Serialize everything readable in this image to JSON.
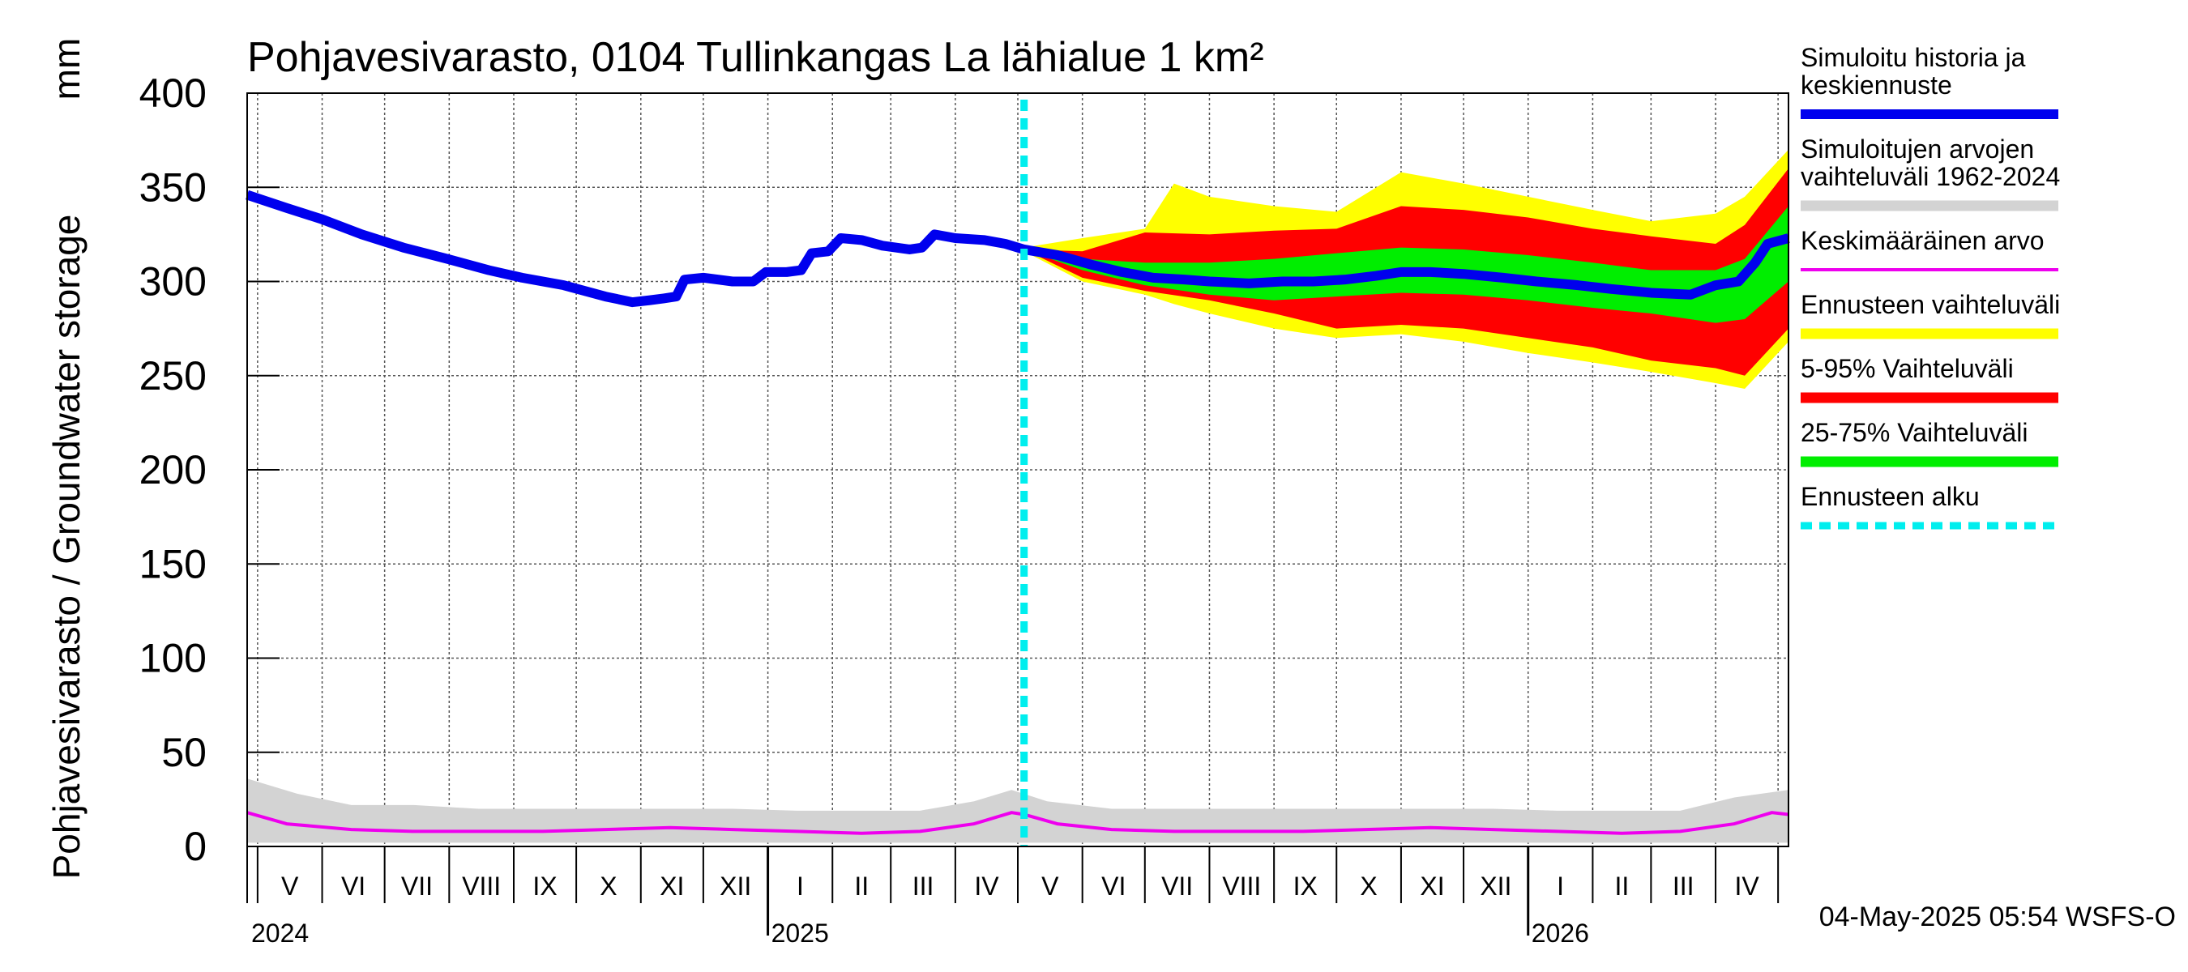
{
  "chart_data": {
    "type": "area",
    "title": "Pohjavesivarasto, 0104 Tullinkangas La lähialue 1 km²",
    "ylabel": "Pohjavesivarasto / Groundwater storage",
    "yunit": "mm",
    "ylim": [
      0,
      400
    ],
    "yticks": [
      0,
      50,
      100,
      150,
      200,
      250,
      300,
      350,
      400
    ],
    "xlim": [
      "2024-04-26",
      "2026-05-06"
    ],
    "months": [
      {
        "label": "V",
        "start": "2024-05-01"
      },
      {
        "label": "VI",
        "start": "2024-06-01"
      },
      {
        "label": "VII",
        "start": "2024-07-01"
      },
      {
        "label": "VIII",
        "start": "2024-08-01"
      },
      {
        "label": "IX",
        "start": "2024-09-01"
      },
      {
        "label": "X",
        "start": "2024-10-01"
      },
      {
        "label": "XI",
        "start": "2024-11-01"
      },
      {
        "label": "XII",
        "start": "2024-12-01"
      },
      {
        "label": "I",
        "start": "2025-01-01"
      },
      {
        "label": "II",
        "start": "2025-02-01"
      },
      {
        "label": "III",
        "start": "2025-03-01"
      },
      {
        "label": "IV",
        "start": "2025-04-01"
      },
      {
        "label": "V",
        "start": "2025-05-01"
      },
      {
        "label": "VI",
        "start": "2025-06-01"
      },
      {
        "label": "VII",
        "start": "2025-07-01"
      },
      {
        "label": "VIII",
        "start": "2025-08-01"
      },
      {
        "label": "IX",
        "start": "2025-09-01"
      },
      {
        "label": "X",
        "start": "2025-10-01"
      },
      {
        "label": "XI",
        "start": "2025-11-01"
      },
      {
        "label": "XII",
        "start": "2025-12-01"
      },
      {
        "label": "I",
        "start": "2026-01-01"
      },
      {
        "label": "II",
        "start": "2026-02-01"
      },
      {
        "label": "III",
        "start": "2026-03-01"
      },
      {
        "label": "IV",
        "start": "2026-04-01"
      },
      {
        "label": "",
        "start": "2026-05-01"
      }
    ],
    "years": [
      {
        "label": "2024",
        "date": "2024-05-01"
      },
      {
        "label": "2025",
        "date": "2025-01-01"
      },
      {
        "label": "2026",
        "date": "2026-01-01"
      }
    ],
    "forecast_start": "2025-05-04",
    "series": [
      {
        "name": "Simuloitu historia ja keskiennuste",
        "color": "#0000ee",
        "points": [
          [
            "2024-04-26",
            346
          ],
          [
            "2024-05-15",
            339
          ],
          [
            "2024-06-01",
            333
          ],
          [
            "2024-06-20",
            325
          ],
          [
            "2024-07-10",
            318
          ],
          [
            "2024-07-31",
            312
          ],
          [
            "2024-08-20",
            306
          ],
          [
            "2024-09-05",
            302
          ],
          [
            "2024-09-25",
            298
          ],
          [
            "2024-10-15",
            292
          ],
          [
            "2024-10-28",
            289
          ],
          [
            "2024-11-05",
            290
          ],
          [
            "2024-11-12",
            291
          ],
          [
            "2024-11-18",
            292
          ],
          [
            "2024-11-22",
            301
          ],
          [
            "2024-12-01",
            302
          ],
          [
            "2024-12-15",
            300
          ],
          [
            "2024-12-25",
            300
          ],
          [
            "2024-12-31",
            305
          ],
          [
            "2025-01-10",
            305
          ],
          [
            "2025-01-17",
            306
          ],
          [
            "2025-01-22",
            315
          ],
          [
            "2025-01-30",
            316
          ],
          [
            "2025-02-05",
            323
          ],
          [
            "2025-02-15",
            322
          ],
          [
            "2025-02-25",
            319
          ],
          [
            "2025-03-10",
            317
          ],
          [
            "2025-03-16",
            318
          ],
          [
            "2025-03-22",
            325
          ],
          [
            "2025-04-01",
            323
          ],
          [
            "2025-04-15",
            322
          ],
          [
            "2025-04-25",
            320
          ],
          [
            "2025-05-04",
            317
          ],
          [
            "2025-05-20",
            314
          ],
          [
            "2025-06-05",
            309
          ],
          [
            "2025-06-20",
            305
          ],
          [
            "2025-07-05",
            302
          ],
          [
            "2025-07-20",
            301
          ],
          [
            "2025-08-01",
            300
          ],
          [
            "2025-08-20",
            299
          ],
          [
            "2025-09-05",
            300
          ],
          [
            "2025-09-20",
            300
          ],
          [
            "2025-10-05",
            301
          ],
          [
            "2025-10-20",
            303
          ],
          [
            "2025-11-01",
            305
          ],
          [
            "2025-11-15",
            305
          ],
          [
            "2025-12-01",
            304
          ],
          [
            "2025-12-20",
            302
          ],
          [
            "2026-01-05",
            300
          ],
          [
            "2026-01-25",
            298
          ],
          [
            "2026-02-10",
            296
          ],
          [
            "2026-03-01",
            294
          ],
          [
            "2026-03-20",
            293
          ],
          [
            "2026-04-01",
            298
          ],
          [
            "2026-04-12",
            300
          ],
          [
            "2026-04-20",
            310
          ],
          [
            "2026-04-26",
            320
          ],
          [
            "2026-05-06",
            323
          ]
        ]
      },
      {
        "name": "Simuloitujen arvojen vaihteluväli 1962-2024",
        "color": "#d3d3d3",
        "x": [
          "2024-04-26",
          "2024-05-20",
          "2024-06-15",
          "2024-07-15",
          "2024-08-15",
          "2024-09-15",
          "2024-10-15",
          "2024-11-15",
          "2024-12-15",
          "2025-01-15",
          "2025-02-15",
          "2025-03-15",
          "2025-04-10",
          "2025-04-28",
          "2025-05-15",
          "2025-06-15",
          "2025-07-15",
          "2025-08-15",
          "2025-09-15",
          "2025-10-15",
          "2025-11-15",
          "2025-12-15",
          "2026-01-15",
          "2026-02-15",
          "2026-03-15",
          "2026-04-10",
          "2026-05-06"
        ],
        "upper": [
          36,
          28,
          22,
          22,
          20,
          20,
          20,
          20,
          20,
          19,
          19,
          19,
          24,
          30,
          24,
          20,
          20,
          20,
          20,
          20,
          20,
          20,
          19,
          19,
          19,
          26,
          30
        ],
        "lower": [
          2,
          2,
          2,
          2,
          2,
          2,
          2,
          2,
          2,
          2,
          2,
          2,
          2,
          2,
          2,
          2,
          2,
          2,
          2,
          2,
          2,
          2,
          2,
          2,
          2,
          2,
          2
        ]
      },
      {
        "name": "Keskimääräinen arvo",
        "color": "#ee00ee",
        "x": [
          "2024-04-26",
          "2024-05-15",
          "2024-06-15",
          "2024-07-15",
          "2024-08-15",
          "2024-09-15",
          "2024-10-15",
          "2024-11-15",
          "2024-12-15",
          "2025-01-15",
          "2025-02-15",
          "2025-03-15",
          "2025-04-10",
          "2025-04-28",
          "2025-05-04",
          "2025-05-20",
          "2025-06-15",
          "2025-07-15",
          "2025-08-15",
          "2025-09-15",
          "2025-10-15",
          "2025-11-15",
          "2025-12-15",
          "2026-01-15",
          "2026-02-15",
          "2026-03-15",
          "2026-04-10",
          "2026-04-28",
          "2026-05-06"
        ],
        "values": [
          18,
          12,
          9,
          8,
          8,
          8,
          9,
          10,
          9,
          8,
          7,
          8,
          12,
          18,
          17,
          12,
          9,
          8,
          8,
          8,
          9,
          10,
          9,
          8,
          7,
          8,
          12,
          18,
          17
        ]
      },
      {
        "name": "Ennusteen vaihteluväli",
        "color": "#ffff00",
        "x": [
          "2025-05-04",
          "2025-06-01",
          "2025-07-01",
          "2025-07-15",
          "2025-08-01",
          "2025-09-01",
          "2025-10-01",
          "2025-11-01",
          "2025-12-01",
          "2026-01-01",
          "2026-02-01",
          "2026-03-01",
          "2026-04-01",
          "2026-04-15",
          "2026-05-06"
        ],
        "upper": [
          318,
          323,
          328,
          352,
          345,
          340,
          337,
          358,
          352,
          345,
          338,
          332,
          336,
          345,
          370
        ],
        "lower": [
          316,
          300,
          293,
          288,
          283,
          275,
          270,
          272,
          268,
          262,
          257,
          252,
          246,
          243,
          268
        ]
      },
      {
        "name": "5-95% Vaihteluväli",
        "color": "#ff0000",
        "x": [
          "2025-05-04",
          "2025-06-01",
          "2025-07-01",
          "2025-08-01",
          "2025-09-01",
          "2025-10-01",
          "2025-11-01",
          "2025-12-01",
          "2026-01-01",
          "2026-02-01",
          "2026-03-01",
          "2026-04-01",
          "2026-04-15",
          "2026-05-06"
        ],
        "upper": [
          317,
          316,
          326,
          325,
          327,
          328,
          340,
          338,
          334,
          328,
          324,
          320,
          330,
          360
        ],
        "lower": [
          317,
          302,
          295,
          290,
          283,
          275,
          277,
          275,
          270,
          265,
          258,
          254,
          250,
          275
        ]
      },
      {
        "name": "25-75% Vaihteluväli",
        "color": "#00ee00",
        "x": [
          "2025-05-04",
          "2025-06-01",
          "2025-07-01",
          "2025-08-01",
          "2025-09-01",
          "2025-10-01",
          "2025-11-01",
          "2025-12-01",
          "2026-01-01",
          "2026-02-01",
          "2026-03-01",
          "2026-04-01",
          "2026-04-15",
          "2026-05-06"
        ],
        "upper": [
          317,
          312,
          310,
          310,
          312,
          315,
          318,
          317,
          314,
          310,
          306,
          306,
          312,
          340
        ],
        "lower": [
          317,
          306,
          298,
          293,
          290,
          292,
          294,
          293,
          290,
          286,
          283,
          278,
          280,
          300
        ]
      },
      {
        "name": "Ennusteen alku",
        "color": "#00eeee"
      }
    ],
    "legend": [
      {
        "lines": [
          "Simuloitu historia ja",
          "keskiennuste"
        ],
        "color": "#0000ee",
        "style": "thick"
      },
      {
        "lines": [
          "Simuloitujen arvojen",
          "vaihteluväli 1962-2024"
        ],
        "color": "#d3d3d3",
        "style": "solid"
      },
      {
        "lines": [
          "Keskimääräinen arvo"
        ],
        "color": "#ee00ee",
        "style": "thin"
      },
      {
        "lines": [
          "Ennusteen vaihteluväli"
        ],
        "color": "#ffff00",
        "style": "solid"
      },
      {
        "lines": [
          "5-95% Vaihteluväli"
        ],
        "color": "#ff0000",
        "style": "solid"
      },
      {
        "lines": [
          "25-75% Vaihteluväli"
        ],
        "color": "#00ee00",
        "style": "solid"
      },
      {
        "lines": [
          "Ennusteen alku"
        ],
        "color": "#00eeee",
        "style": "dashed"
      }
    ],
    "footer": "04-May-2025 05:54 WSFS-O",
    "grid": true
  }
}
